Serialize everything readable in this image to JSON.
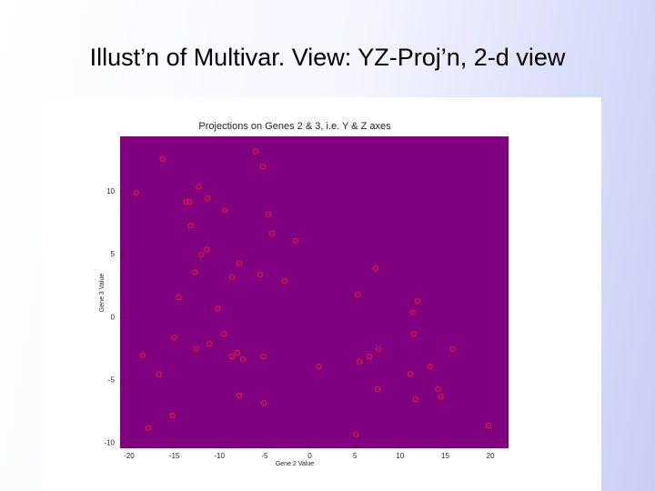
{
  "slide_title": "Illust’n of Multivar. View: YZ-Proj’n, 2-d view",
  "chart_data": {
    "type": "scatter",
    "title": "Projections on Genes 2 & 3, i.e. Y & Z axes",
    "x_label": "Gene 2 Value",
    "y_label": "Gene 3 Value",
    "x": [
      -16.3,
      -6.0,
      -5.2,
      -19.2,
      -12.3,
      -13.7,
      -13.3,
      -11.3,
      -9.4,
      -4.6,
      -13.2,
      -4.2,
      -1.6,
      -11.4,
      -12.0,
      -7.8,
      -12.7,
      -8.6,
      -5.5,
      -2.8,
      7.3,
      5.3,
      -14.5,
      11.9,
      -10.2,
      11.4,
      -15.0,
      -9.5,
      11.5,
      -11.1,
      -12.6,
      -8.0,
      -8.6,
      -7.4,
      -5.1,
      -18.5,
      7.6,
      6.6,
      5.5,
      15.8,
      1.0,
      13.3,
      -16.7,
      11.1,
      7.5,
      14.2,
      -7.8,
      -5.1,
      11.7,
      14.5,
      -15.2,
      -17.9,
      5.1,
      19.8
    ],
    "values": [
      12.6,
      13.2,
      12.0,
      9.9,
      10.4,
      9.2,
      9.2,
      9.5,
      8.5,
      8.2,
      7.3,
      6.7,
      6.1,
      5.4,
      5.0,
      4.3,
      3.6,
      3.2,
      3.4,
      2.9,
      3.9,
      1.8,
      1.6,
      1.3,
      0.7,
      0.4,
      -1.6,
      -1.3,
      -1.3,
      -2.1,
      -2.5,
      -2.8,
      -3.1,
      -3.3,
      -3.1,
      -3.0,
      -2.5,
      -3.1,
      -3.5,
      -2.5,
      -3.9,
      -3.9,
      -4.5,
      -4.5,
      -5.7,
      -5.7,
      -6.2,
      -6.8,
      -6.5,
      -6.3,
      -7.8,
      -8.8,
      -9.3,
      -8.6
    ],
    "color": "#ff2020",
    "plot_background": "#800080",
    "xlim": [
      -21,
      22
    ],
    "xticks": [
      -20,
      -15,
      -10,
      -5,
      0,
      5,
      10,
      15,
      20
    ],
    "ylim": [
      -10.4,
      14.4
    ],
    "yticks": [
      -10,
      -5,
      0,
      5,
      10
    ]
  }
}
